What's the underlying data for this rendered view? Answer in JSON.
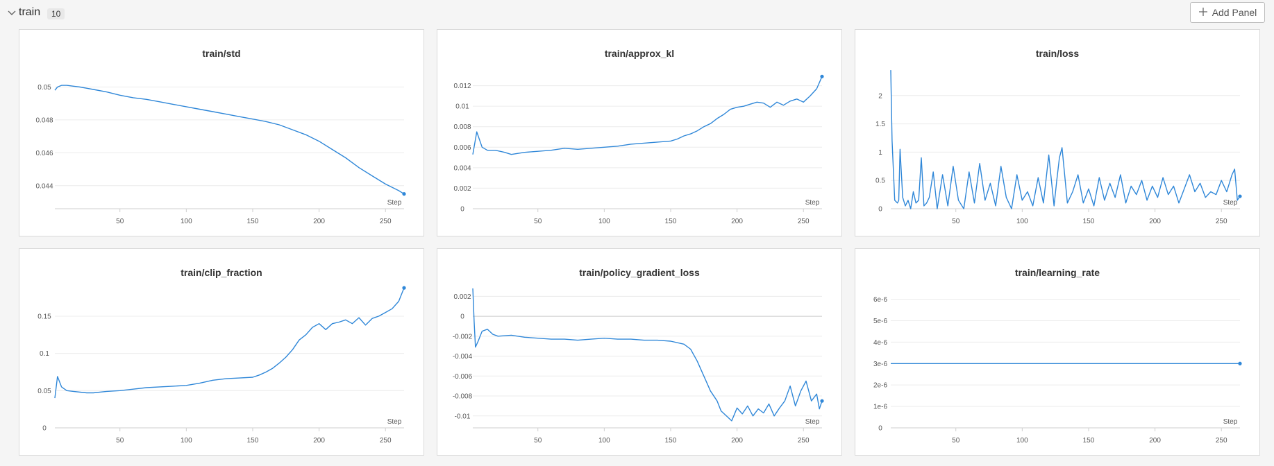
{
  "section": {
    "title": "train",
    "count": "10",
    "add_panel_label": "Add Panel"
  },
  "colors": {
    "line": "#2f87d8",
    "grid": "#ececec",
    "axis": "#cfcfcf",
    "tick_text": "#555555"
  },
  "icons": {
    "collapse": "chevron-down-icon",
    "add": "plus-icon"
  },
  "panels": [
    {
      "title": "train/std",
      "xlabel": "Step",
      "chart_data": {
        "type": "line",
        "title": "train/std",
        "xlabel": "Step",
        "ylabel": "",
        "xlim": [
          1,
          264
        ],
        "ylim": [
          0.0426,
          0.0512
        ],
        "x_ticks": [
          50,
          100,
          150,
          200,
          250
        ],
        "x_tick_labels": [
          "50",
          "100",
          "150",
          "200",
          "250"
        ],
        "y_ticks": [
          0.044,
          0.046,
          0.048,
          0.05
        ],
        "y_tick_labels": [
          "0.044",
          "0.046",
          "0.048",
          "0.05"
        ],
        "series": [
          {
            "x": [
              1,
              3,
              6,
              10,
              15,
              20,
              30,
              40,
              50,
              60,
              70,
              80,
              90,
              100,
              110,
              120,
              130,
              140,
              150,
              160,
              170,
              180,
              190,
              200,
              210,
              220,
              230,
              240,
              250,
              260,
              264
            ],
            "y": [
              0.0498,
              0.05,
              0.0501,
              0.0501,
              0.05005,
              0.05,
              0.04985,
              0.0497,
              0.0495,
              0.04935,
              0.04925,
              0.0491,
              0.04895,
              0.0488,
              0.04865,
              0.0485,
              0.04835,
              0.0482,
              0.04805,
              0.0479,
              0.0477,
              0.0474,
              0.0471,
              0.0467,
              0.0462,
              0.0457,
              0.0451,
              0.0446,
              0.0441,
              0.0437,
              0.0435
            ]
          }
        ]
      }
    },
    {
      "title": "train/approx_kl",
      "xlabel": "Step",
      "chart_data": {
        "type": "line",
        "title": "train/approx_kl",
        "xlabel": "Step",
        "ylabel": "",
        "xlim": [
          1,
          264
        ],
        "ylim": [
          0,
          0.0138
        ],
        "x_ticks": [
          50,
          100,
          150,
          200,
          250
        ],
        "x_tick_labels": [
          "50",
          "100",
          "150",
          "200",
          "250"
        ],
        "y_ticks": [
          0,
          0.002,
          0.004,
          0.006,
          0.008,
          0.01,
          0.012
        ],
        "y_tick_labels": [
          "0",
          "0.002",
          "0.004",
          "0.006",
          "0.008",
          "0.01",
          "0.012"
        ],
        "series": [
          {
            "x": [
              1,
              4,
              8,
              12,
              18,
              25,
              30,
              40,
              50,
              60,
              70,
              80,
              90,
              100,
              110,
              120,
              130,
              140,
              150,
              155,
              160,
              165,
              170,
              175,
              180,
              185,
              190,
              195,
              200,
              205,
              210,
              215,
              220,
              225,
              230,
              235,
              240,
              245,
              250,
              255,
              260,
              264
            ],
            "y": [
              0.0053,
              0.0075,
              0.006,
              0.0057,
              0.0057,
              0.0055,
              0.0053,
              0.0055,
              0.0056,
              0.0057,
              0.0059,
              0.0058,
              0.0059,
              0.006,
              0.0061,
              0.0063,
              0.0064,
              0.0065,
              0.0066,
              0.0068,
              0.0071,
              0.0073,
              0.0076,
              0.008,
              0.0083,
              0.0088,
              0.0092,
              0.0097,
              0.0099,
              0.01,
              0.0102,
              0.0104,
              0.0103,
              0.0099,
              0.0104,
              0.0101,
              0.0105,
              0.0107,
              0.0104,
              0.011,
              0.0117,
              0.0129
            ]
          }
        ]
      }
    },
    {
      "title": "train/loss",
      "xlabel": "Step",
      "chart_data": {
        "type": "line",
        "title": "train/loss",
        "xlabel": "Step",
        "ylabel": "",
        "xlim": [
          1,
          264
        ],
        "ylim": [
          0,
          2.5
        ],
        "x_ticks": [
          50,
          100,
          150,
          200,
          250
        ],
        "x_tick_labels": [
          "50",
          "100",
          "150",
          "200",
          "250"
        ],
        "y_ticks": [
          0,
          0.5,
          1,
          1.5,
          2
        ],
        "y_tick_labels": [
          "0",
          "0.5",
          "1",
          "1.5",
          "2"
        ],
        "series": [
          {
            "x": [
              1,
              2,
              4,
              6,
              7,
              8,
              10,
              12,
              14,
              16,
              18,
              20,
              22,
              24,
              26,
              28,
              30,
              33,
              36,
              40,
              44,
              48,
              52,
              56,
              60,
              64,
              68,
              72,
              76,
              80,
              84,
              88,
              92,
              96,
              100,
              104,
              108,
              112,
              116,
              120,
              124,
              126,
              128,
              130,
              134,
              138,
              142,
              146,
              150,
              154,
              158,
              162,
              166,
              170,
              174,
              178,
              182,
              186,
              190,
              194,
              198,
              202,
              206,
              210,
              214,
              218,
              222,
              226,
              230,
              234,
              238,
              242,
              246,
              250,
              254,
              258,
              260,
              262,
              264
            ],
            "y": [
              2.45,
              1.2,
              0.15,
              0.1,
              0.15,
              1.05,
              0.2,
              0.05,
              0.15,
              0.0,
              0.3,
              0.1,
              0.15,
              0.9,
              0.05,
              0.1,
              0.2,
              0.65,
              0.0,
              0.6,
              0.05,
              0.75,
              0.15,
              0.0,
              0.65,
              0.1,
              0.8,
              0.15,
              0.45,
              0.05,
              0.75,
              0.2,
              0.0,
              0.6,
              0.15,
              0.3,
              0.05,
              0.55,
              0.1,
              0.95,
              0.05,
              0.5,
              0.9,
              1.08,
              0.1,
              0.3,
              0.6,
              0.1,
              0.35,
              0.05,
              0.55,
              0.15,
              0.45,
              0.2,
              0.6,
              0.1,
              0.4,
              0.25,
              0.5,
              0.15,
              0.4,
              0.2,
              0.55,
              0.25,
              0.4,
              0.1,
              0.35,
              0.6,
              0.3,
              0.45,
              0.2,
              0.3,
              0.25,
              0.5,
              0.3,
              0.6,
              0.7,
              0.15,
              0.22
            ]
          }
        ]
      }
    },
    {
      "title": "train/clip_fraction",
      "xlabel": "Step",
      "chart_data": {
        "type": "line",
        "title": "train/clip_fraction",
        "xlabel": "Step",
        "ylabel": "",
        "xlim": [
          1,
          264
        ],
        "ylim": [
          0,
          0.19
        ],
        "x_ticks": [
          50,
          100,
          150,
          200,
          250
        ],
        "x_tick_labels": [
          "50",
          "100",
          "150",
          "200",
          "250"
        ],
        "y_ticks": [
          0,
          0.05,
          0.1,
          0.15
        ],
        "y_tick_labels": [
          "0",
          "0.05",
          "0.1",
          "0.15"
        ],
        "series": [
          {
            "x": [
              1,
              3,
              6,
              10,
              15,
              20,
              25,
              30,
              40,
              50,
              60,
              70,
              80,
              90,
              100,
              110,
              120,
              130,
              140,
              150,
              155,
              160,
              165,
              170,
              175,
              180,
              185,
              190,
              195,
              200,
              205,
              210,
              215,
              220,
              225,
              230,
              235,
              240,
              245,
              250,
              255,
              260,
              264
            ],
            "y": [
              0.04,
              0.069,
              0.055,
              0.05,
              0.049,
              0.048,
              0.047,
              0.047,
              0.049,
              0.05,
              0.052,
              0.054,
              0.055,
              0.056,
              0.057,
              0.06,
              0.064,
              0.066,
              0.067,
              0.068,
              0.071,
              0.075,
              0.08,
              0.087,
              0.095,
              0.105,
              0.118,
              0.125,
              0.135,
              0.14,
              0.132,
              0.14,
              0.142,
              0.145,
              0.14,
              0.148,
              0.138,
              0.147,
              0.15,
              0.155,
              0.16,
              0.17,
              0.188
            ]
          }
        ]
      }
    },
    {
      "title": "train/policy_gradient_loss",
      "xlabel": "Step",
      "chart_data": {
        "type": "line",
        "title": "train/policy_gradient_loss",
        "xlabel": "Step",
        "ylabel": "",
        "xlim": [
          1,
          264
        ],
        "ylim": [
          -0.0112,
          0.003
        ],
        "x_ticks": [
          50,
          100,
          150,
          200,
          250
        ],
        "x_tick_labels": [
          "50",
          "100",
          "150",
          "200",
          "250"
        ],
        "y_ticks": [
          -0.01,
          -0.008,
          -0.006,
          -0.004,
          -0.002,
          0,
          0.002
        ],
        "y_tick_labels": [
          "-0.01",
          "-0.008",
          "-0.006",
          "-0.004",
          "-0.002",
          "0",
          "0.002"
        ],
        "series": [
          {
            "x": [
              1,
              2,
              3,
              5,
              8,
              12,
              16,
              20,
              30,
              40,
              50,
              60,
              70,
              80,
              90,
              100,
              110,
              120,
              130,
              140,
              150,
              160,
              165,
              170,
              175,
              180,
              185,
              188,
              192,
              196,
              200,
              204,
              208,
              212,
              216,
              220,
              224,
              228,
              232,
              236,
              240,
              244,
              248,
              252,
              256,
              260,
              262,
              264
            ],
            "y": [
              0.0028,
              -0.0005,
              -0.0031,
              -0.0025,
              -0.0015,
              -0.0013,
              -0.0018,
              -0.002,
              -0.0019,
              -0.0021,
              -0.0022,
              -0.0023,
              -0.0023,
              -0.0024,
              -0.0023,
              -0.0022,
              -0.0023,
              -0.0023,
              -0.0024,
              -0.0024,
              -0.0025,
              -0.0028,
              -0.0033,
              -0.0045,
              -0.006,
              -0.0075,
              -0.0085,
              -0.0095,
              -0.01,
              -0.0105,
              -0.0092,
              -0.0098,
              -0.009,
              -0.01,
              -0.0093,
              -0.0097,
              -0.0088,
              -0.01,
              -0.0092,
              -0.0085,
              -0.007,
              -0.009,
              -0.0075,
              -0.0065,
              -0.0085,
              -0.0078,
              -0.0093,
              -0.0085
            ]
          }
        ]
      }
    },
    {
      "title": "train/learning_rate",
      "xlabel": "Step",
      "chart_data": {
        "type": "line",
        "title": "train/learning_rate",
        "xlabel": "Step",
        "ylabel": "",
        "xlim": [
          1,
          264
        ],
        "ylim": [
          0,
          6.6e-06
        ],
        "x_ticks": [
          50,
          100,
          150,
          200,
          250
        ],
        "x_tick_labels": [
          "50",
          "100",
          "150",
          "200",
          "250"
        ],
        "y_ticks": [
          0,
          1e-06,
          2e-06,
          3e-06,
          4e-06,
          5e-06,
          6e-06
        ],
        "y_tick_labels": [
          "0",
          "1e-6",
          "2e-6",
          "3e-6",
          "4e-6",
          "5e-6",
          "6e-6"
        ],
        "series": [
          {
            "x": [
              1,
              264
            ],
            "y": [
              3e-06,
              3e-06
            ]
          }
        ]
      }
    }
  ]
}
